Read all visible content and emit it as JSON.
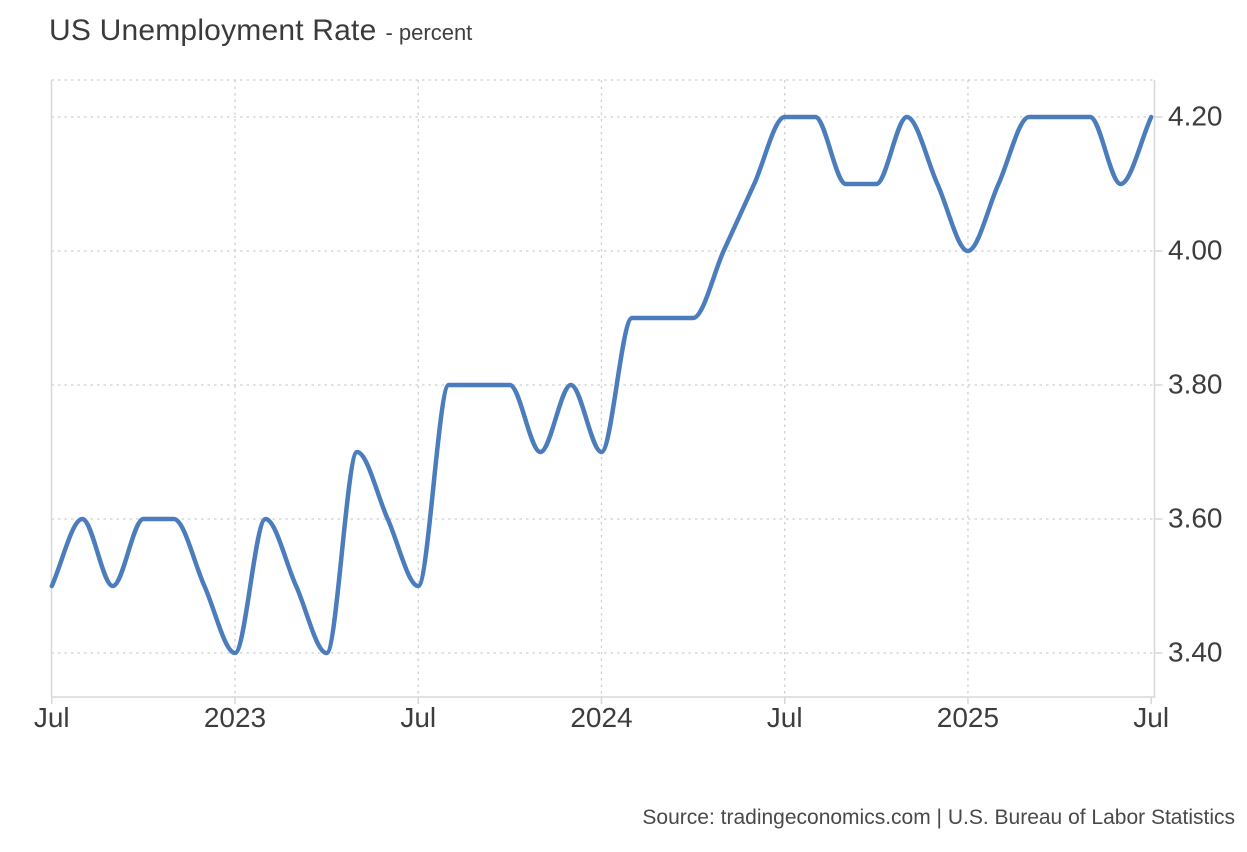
{
  "header": {
    "title": "US Unemployment Rate",
    "subtitle": "- percent"
  },
  "footer": {
    "source": "Source: tradingeconomics.com | U.S. Bureau of Labor Statistics"
  },
  "chart_data": {
    "type": "line",
    "title": "US Unemployment Rate",
    "unit": "percent",
    "x_range": {
      "start": "Jul 2022",
      "end": "Jul 2025",
      "interval": "monthly"
    },
    "series": [
      {
        "name": "US Unemployment Rate",
        "months": [
          "2022-07",
          "2022-08",
          "2022-09",
          "2022-10",
          "2022-11",
          "2022-12",
          "2023-01",
          "2023-02",
          "2023-03",
          "2023-04",
          "2023-05",
          "2023-06",
          "2023-07",
          "2023-08",
          "2023-09",
          "2023-10",
          "2023-11",
          "2023-12",
          "2024-01",
          "2024-02",
          "2024-03",
          "2024-04",
          "2024-05",
          "2024-06",
          "2024-07",
          "2024-08",
          "2024-09",
          "2024-10",
          "2024-11",
          "2024-12",
          "2025-01",
          "2025-02",
          "2025-03",
          "2025-04",
          "2025-05",
          "2025-06",
          "2025-07"
        ],
        "values": [
          3.5,
          3.6,
          3.5,
          3.6,
          3.6,
          3.5,
          3.4,
          3.6,
          3.5,
          3.4,
          3.7,
          3.6,
          3.5,
          3.8,
          3.8,
          3.8,
          3.7,
          3.8,
          3.7,
          3.9,
          3.9,
          3.9,
          4.0,
          4.1,
          4.2,
          4.2,
          4.1,
          4.1,
          4.2,
          4.1,
          4.0,
          4.1,
          4.2,
          4.2,
          4.2,
          4.1,
          4.2
        ]
      }
    ],
    "x_ticks": [
      {
        "label": "Jul",
        "month_index": 0
      },
      {
        "label": "2023",
        "month_index": 6
      },
      {
        "label": "Jul",
        "month_index": 12
      },
      {
        "label": "2024",
        "month_index": 18
      },
      {
        "label": "Jul",
        "month_index": 24
      },
      {
        "label": "2025",
        "month_index": 30
      },
      {
        "label": "Jul",
        "month_index": 36
      }
    ],
    "y_ticks": [
      "4.20",
      "4.00",
      "3.80",
      "3.60",
      "3.40"
    ],
    "y_tick_values": [
      4.2,
      4.0,
      3.8,
      3.6,
      3.4
    ],
    "ylim": [
      3.33,
      4.26
    ],
    "grid": "dotted",
    "legend": "none",
    "line_color": "#4b7dbd",
    "grid_color": "#cfcfcf",
    "axis_color": "#d8d8d8",
    "label_color": "#3d3d3d"
  }
}
